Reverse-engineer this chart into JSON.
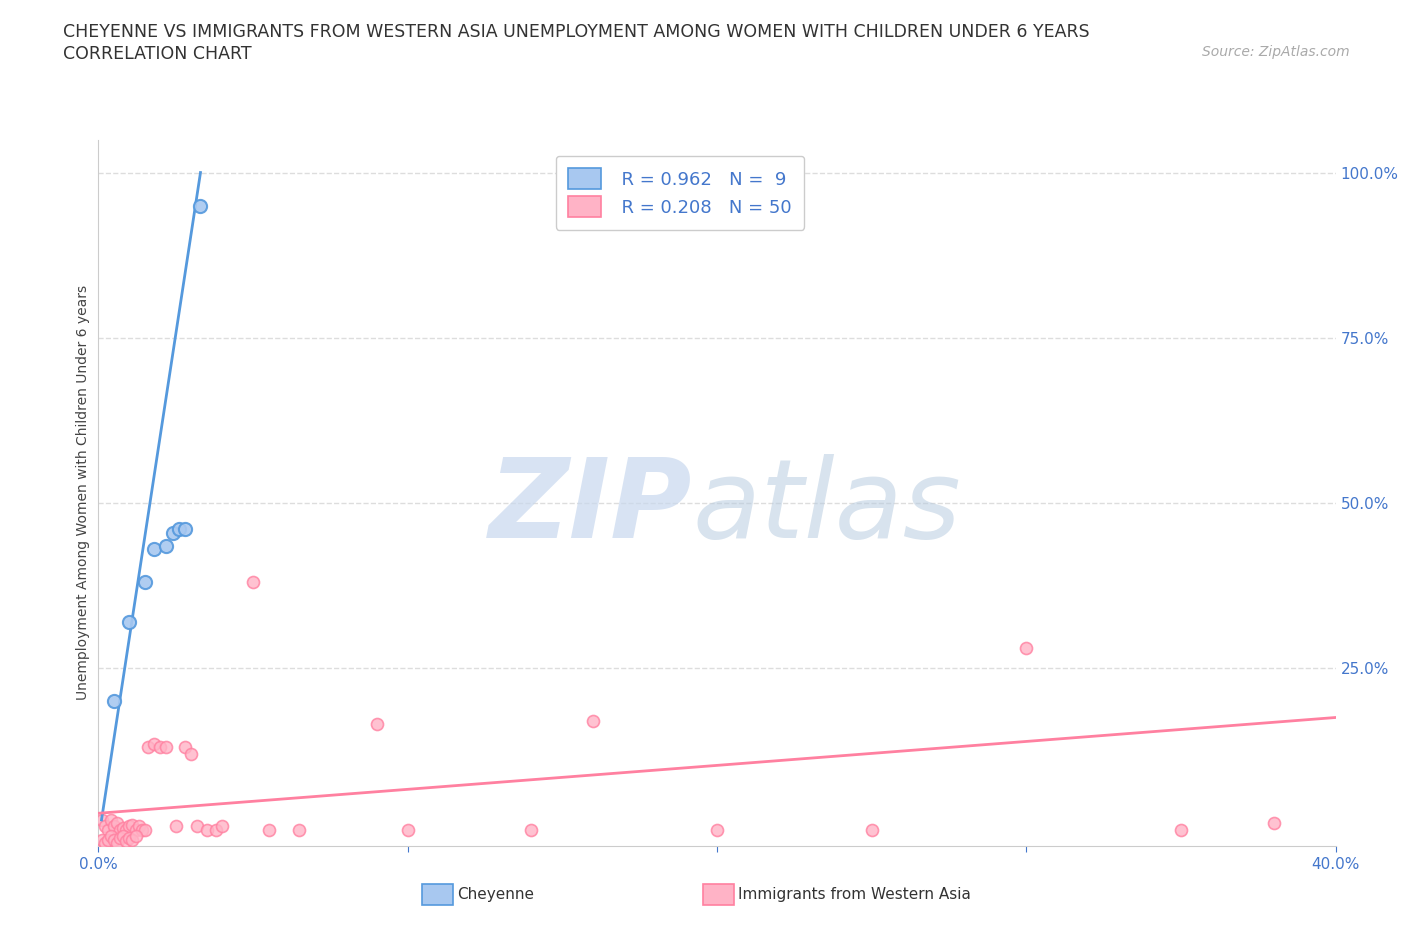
{
  "title_line1": "CHEYENNE VS IMMIGRANTS FROM WESTERN ASIA UNEMPLOYMENT AMONG WOMEN WITH CHILDREN UNDER 6 YEARS",
  "title_line2": "CORRELATION CHART",
  "source_text": "Source: ZipAtlas.com",
  "ylabel": "Unemployment Among Women with Children Under 6 years",
  "xlim": [
    0.0,
    0.4
  ],
  "ylim": [
    -0.02,
    1.05
  ],
  "cheyenne_color": "#a8c8f0",
  "cheyenne_line_color": "#5599dd",
  "immigrants_color": "#ffb3c6",
  "immigrants_line_color": "#ff80a0",
  "legend_r_cheyenne": "R = 0.962",
  "legend_n_cheyenne": "N =  9",
  "legend_r_immigrants": "R = 0.208",
  "legend_n_immigrants": "N = 50",
  "cheyenne_x": [
    0.005,
    0.01,
    0.015,
    0.018,
    0.022,
    0.024,
    0.026,
    0.028,
    0.033
  ],
  "cheyenne_y": [
    0.2,
    0.32,
    0.38,
    0.43,
    0.435,
    0.455,
    0.46,
    0.46,
    0.95
  ],
  "cheyenne_trend_x": [
    0.001,
    0.033
  ],
  "cheyenne_trend_y": [
    0.02,
    1.0
  ],
  "immigrants_x": [
    0.001,
    0.002,
    0.003,
    0.004,
    0.005,
    0.006,
    0.007,
    0.008,
    0.009,
    0.01,
    0.011,
    0.012,
    0.013,
    0.014,
    0.015,
    0.016,
    0.018,
    0.02,
    0.022,
    0.025,
    0.028,
    0.03,
    0.032,
    0.035,
    0.038,
    0.04,
    0.05,
    0.055,
    0.065,
    0.09,
    0.1,
    0.14,
    0.16,
    0.2,
    0.25,
    0.3,
    0.35,
    0.38,
    0.001,
    0.002,
    0.003,
    0.004,
    0.005,
    0.006,
    0.007,
    0.008,
    0.009,
    0.01,
    0.011,
    0.012
  ],
  "immigrants_y": [
    0.02,
    0.01,
    0.005,
    0.02,
    0.01,
    0.015,
    0.005,
    0.008,
    0.005,
    0.01,
    0.013,
    0.005,
    0.01,
    0.005,
    0.005,
    0.13,
    0.135,
    0.13,
    0.13,
    0.01,
    0.13,
    0.12,
    0.01,
    0.005,
    0.005,
    0.01,
    0.38,
    0.005,
    0.005,
    0.165,
    0.005,
    0.005,
    0.17,
    0.005,
    0.005,
    0.28,
    0.005,
    0.015,
    -0.01,
    -0.015,
    -0.01,
    -0.005,
    -0.01,
    -0.015,
    -0.008,
    -0.005,
    -0.012,
    -0.008,
    -0.01,
    -0.005
  ],
  "immigrants_trend_x": [
    0.0,
    0.4
  ],
  "immigrants_trend_y": [
    0.03,
    0.175
  ],
  "grid_color": "#dddddd",
  "bg_color": "#ffffff",
  "axis_color": "#4477cc",
  "title_fontsize": 12.5,
  "axis_label_fontsize": 10,
  "tick_fontsize": 11,
  "source_fontsize": 10
}
